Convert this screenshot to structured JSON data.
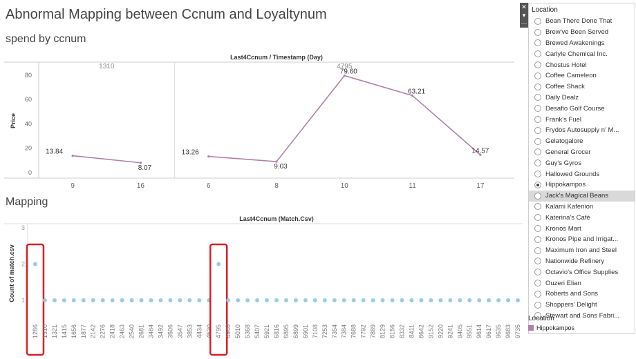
{
  "dashboard": {
    "title": "Abnormal Mapping between Ccnum and Loyaltynum",
    "top_subtitle": "spend by ccnum",
    "bottom_subtitle": "Mapping"
  },
  "colors": {
    "line": "#b07fac",
    "dot": "#9ccae6",
    "highlight": "#d91f26",
    "legend_swatch": "#b07fac"
  },
  "filter": {
    "title": "Location",
    "selected": "Hippokampos",
    "hovered": "Jack's Magical Beans",
    "items": [
      "Bean There Done That",
      "Brew've Been Served",
      "Brewed Awakenings",
      "Carlyle Chemical Inc.",
      "Chostus Hotel",
      "Coffee Cameleon",
      "Coffee Shack",
      "Daily Dealz",
      "Desafio Golf Course",
      "Frank's Fuel",
      "Frydos Autosupply n' M...",
      "Gelatogalore",
      "General Grocer",
      "Guy's Gyros",
      "Hallowed Grounds",
      "Hippokampos",
      "Jack's Magical Beans",
      "Kalami Kafenion",
      "Katerina's Café",
      "Kronos Mart",
      "Kronos Pipe and Irrigat...",
      "Maximum Iron and Steel",
      "Nationwide Refinery",
      "Octavio's Office Supplies",
      "Ouzeri Elian",
      "Roberts and Sons",
      "Shoppers' Delight",
      "Stewart and Sons Fabri..."
    ]
  },
  "legend": {
    "title": "Location",
    "item": "Hippokampos"
  },
  "chart_data": [
    {
      "type": "line",
      "title": "Last4Ccnum / Timestamp (Day)",
      "ylabel": "Price",
      "ylim": [
        0,
        85
      ],
      "yticks": [
        0,
        20,
        40,
        60,
        80
      ],
      "grid": false,
      "panels": [
        {
          "header": "1310",
          "x": [
            "9",
            "16"
          ],
          "values": [
            13.84,
            8.07
          ]
        },
        {
          "header": "4795",
          "x": [
            "6",
            "8",
            "10",
            "11",
            "17"
          ],
          "values": [
            13.26,
            9.03,
            79.6,
            63.21,
            14.57
          ]
        }
      ],
      "data_labels": [
        {
          "panel": 0,
          "index": 0,
          "text": "13.84"
        },
        {
          "panel": 0,
          "index": 1,
          "text": "8.07"
        },
        {
          "panel": 1,
          "index": 0,
          "text": "13.26"
        },
        {
          "panel": 1,
          "index": 1,
          "text": "9.03"
        },
        {
          "panel": 1,
          "index": 2,
          "text": "79.60"
        },
        {
          "panel": 1,
          "index": 3,
          "text": "63.21"
        },
        {
          "panel": 1,
          "index": 4,
          "text": "14.57"
        }
      ]
    },
    {
      "type": "scatter",
      "title": "Last4Ccnum (Match.Csv)",
      "ylabel": "Count of match.csv",
      "ylim": [
        0.6,
        3
      ],
      "yticks": [
        1,
        2,
        3
      ],
      "grid": false,
      "categories": [
        "1286",
        "1310",
        "1321",
        "1415",
        "1656",
        "1877",
        "2142",
        "2276",
        "2418",
        "2463",
        "2540",
        "2681",
        "3484",
        "3492",
        "3506",
        "3547",
        "3853",
        "4434",
        "4530",
        "4795",
        "4948",
        "5010",
        "5368",
        "5407",
        "5921",
        "6816",
        "6895",
        "6899",
        "6901",
        "7108",
        "7253",
        "7354",
        "7384",
        "7688",
        "7792",
        "7889",
        "8129",
        "8156",
        "8332",
        "8411",
        "8642",
        "9152",
        "9220",
        "9241",
        "9405",
        "9551",
        "9614",
        "9617",
        "9635",
        "9683",
        "9735"
      ],
      "values": [
        2,
        1,
        1,
        1,
        1,
        1,
        1,
        1,
        1,
        1,
        1,
        1,
        1,
        1,
        1,
        1,
        1,
        1,
        1,
        2,
        1,
        1,
        1,
        1,
        1,
        1,
        1,
        1,
        1,
        1,
        1,
        1,
        1,
        1,
        1,
        1,
        1,
        1,
        1,
        1,
        1,
        1,
        1,
        1,
        1,
        1,
        1,
        1,
        1,
        1,
        1
      ],
      "highlighted": [
        "1286",
        "4795"
      ]
    }
  ]
}
